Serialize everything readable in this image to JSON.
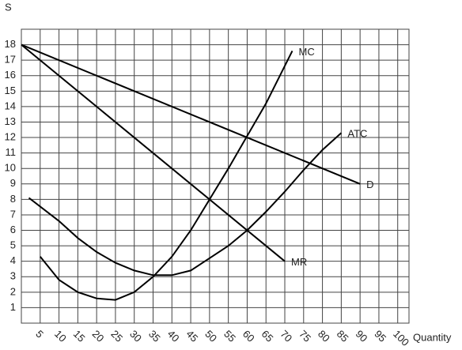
{
  "chart_data": {
    "type": "line",
    "y_label": "S",
    "x_label": "Quantity",
    "xlim": [
      0,
      103
    ],
    "ylim": [
      0,
      19
    ],
    "xticks": [
      5,
      10,
      15,
      20,
      25,
      30,
      35,
      40,
      45,
      50,
      55,
      60,
      65,
      70,
      75,
      80,
      85,
      90,
      95,
      100
    ],
    "yticks": [
      1,
      2,
      3,
      4,
      5,
      6,
      7,
      8,
      9,
      10,
      11,
      12,
      13,
      14,
      15,
      16,
      17,
      18
    ],
    "grid": true,
    "series": [
      {
        "name": "D",
        "color": "#000000",
        "x": [
          0,
          90
        ],
        "values": [
          18,
          9
        ]
      },
      {
        "name": "MR",
        "color": "#000000",
        "x": [
          0,
          70
        ],
        "values": [
          18,
          4
        ]
      },
      {
        "name": "MC",
        "color": "#000000",
        "x": [
          5,
          10,
          15,
          20,
          25,
          30,
          35,
          40,
          45,
          50,
          55,
          60,
          65,
          72
        ],
        "values": [
          4.3,
          2.8,
          2,
          1.6,
          1.5,
          2,
          3,
          4.3,
          6,
          8,
          10,
          12.1,
          14.2,
          17.6
        ]
      },
      {
        "name": "ATC",
        "color": "#000000",
        "x": [
          2,
          10,
          15,
          20,
          25,
          30,
          35,
          40,
          45,
          50,
          55,
          60,
          65,
          70,
          75,
          80,
          85
        ],
        "values": [
          8.1,
          6.6,
          5.5,
          4.6,
          3.9,
          3.4,
          3.1,
          3.1,
          3.4,
          4.2,
          5,
          6,
          7.2,
          8.5,
          9.9,
          11.2,
          12.3
        ]
      }
    ]
  }
}
